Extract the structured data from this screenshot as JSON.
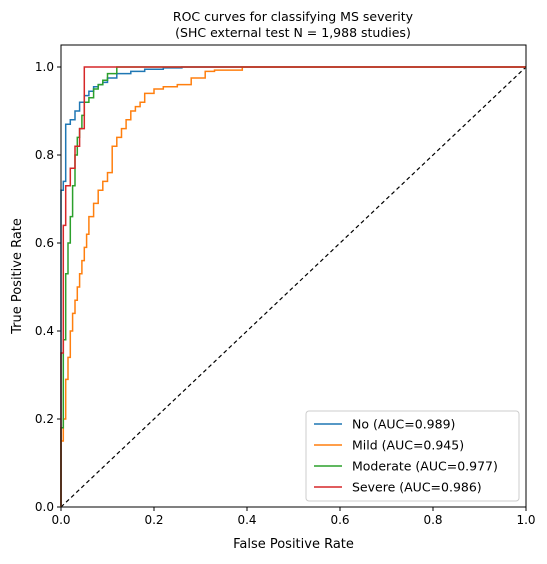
{
  "chart_data": {
    "type": "line",
    "title": "ROC curves for classifying MS severity",
    "subtitle": "(SHC external test N = 1,988 studies)",
    "xlabel": "False Positive Rate",
    "ylabel": "True Positive Rate",
    "xlim": [
      0,
      1.0
    ],
    "ylim": [
      0,
      1.05
    ],
    "xticks": [
      "0.0",
      "0.2",
      "0.4",
      "0.6",
      "0.8",
      "1.0"
    ],
    "yticks": [
      "0.0",
      "0.2",
      "0.4",
      "0.6",
      "0.8",
      "1.0"
    ],
    "grid": false,
    "legend_position": "lower-right",
    "reference_line": {
      "x": [
        0,
        1
      ],
      "y": [
        0,
        1
      ],
      "style": "dashed",
      "color": "#000000"
    },
    "series": [
      {
        "name": "No (AUC=0.989)",
        "color": "#1f77b4",
        "x": [
          0,
          0,
          0.005,
          0.005,
          0.01,
          0.01,
          0.02,
          0.02,
          0.03,
          0.03,
          0.04,
          0.04,
          0.05,
          0.05,
          0.06,
          0.06,
          0.07,
          0.07,
          0.08,
          0.08,
          0.09,
          0.09,
          0.1,
          0.1,
          0.12,
          0.12,
          0.15,
          0.15,
          0.18,
          0.18,
          0.22,
          0.22,
          0.26,
          0.26,
          1.0
        ],
        "y": [
          0,
          0.72,
          0.72,
          0.74,
          0.74,
          0.87,
          0.87,
          0.88,
          0.88,
          0.9,
          0.9,
          0.92,
          0.92,
          0.935,
          0.935,
          0.945,
          0.945,
          0.955,
          0.955,
          0.96,
          0.96,
          0.965,
          0.965,
          0.975,
          0.975,
          0.985,
          0.985,
          0.99,
          0.99,
          0.995,
          0.995,
          0.998,
          0.998,
          1.0,
          1.0
        ]
      },
      {
        "name": "Mild (AUC=0.945)",
        "color": "#ff7f0e",
        "x": [
          0,
          0,
          0.005,
          0.005,
          0.01,
          0.01,
          0.015,
          0.015,
          0.02,
          0.02,
          0.025,
          0.025,
          0.03,
          0.03,
          0.035,
          0.035,
          0.04,
          0.04,
          0.045,
          0.045,
          0.05,
          0.05,
          0.055,
          0.055,
          0.06,
          0.06,
          0.07,
          0.07,
          0.08,
          0.08,
          0.09,
          0.09,
          0.1,
          0.1,
          0.11,
          0.11,
          0.12,
          0.12,
          0.13,
          0.13,
          0.14,
          0.14,
          0.15,
          0.15,
          0.16,
          0.16,
          0.17,
          0.17,
          0.18,
          0.18,
          0.2,
          0.2,
          0.22,
          0.22,
          0.25,
          0.25,
          0.28,
          0.28,
          0.31,
          0.31,
          0.33,
          0.33,
          0.39,
          0.39,
          1.0
        ],
        "y": [
          0,
          0.15,
          0.15,
          0.2,
          0.2,
          0.29,
          0.29,
          0.34,
          0.34,
          0.4,
          0.4,
          0.44,
          0.44,
          0.47,
          0.47,
          0.5,
          0.5,
          0.53,
          0.53,
          0.56,
          0.56,
          0.59,
          0.59,
          0.62,
          0.62,
          0.66,
          0.66,
          0.69,
          0.69,
          0.72,
          0.72,
          0.74,
          0.74,
          0.76,
          0.76,
          0.82,
          0.82,
          0.84,
          0.84,
          0.86,
          0.86,
          0.88,
          0.88,
          0.9,
          0.9,
          0.91,
          0.91,
          0.92,
          0.92,
          0.94,
          0.94,
          0.95,
          0.95,
          0.955,
          0.955,
          0.96,
          0.96,
          0.975,
          0.975,
          0.99,
          0.99,
          0.993,
          0.993,
          1.0,
          1.0
        ]
      },
      {
        "name": "Moderate (AUC=0.977)",
        "color": "#2ca02c",
        "x": [
          0,
          0,
          0.005,
          0.005,
          0.01,
          0.01,
          0.015,
          0.015,
          0.02,
          0.02,
          0.025,
          0.025,
          0.03,
          0.03,
          0.035,
          0.035,
          0.04,
          0.04,
          0.045,
          0.045,
          0.05,
          0.05,
          0.06,
          0.06,
          0.07,
          0.07,
          0.08,
          0.08,
          0.09,
          0.09,
          0.1,
          0.1,
          0.12,
          0.12,
          1.0
        ],
        "y": [
          0,
          0.18,
          0.18,
          0.38,
          0.38,
          0.53,
          0.53,
          0.6,
          0.6,
          0.66,
          0.66,
          0.73,
          0.73,
          0.8,
          0.8,
          0.84,
          0.84,
          0.86,
          0.86,
          0.89,
          0.89,
          0.92,
          0.92,
          0.93,
          0.93,
          0.95,
          0.95,
          0.96,
          0.96,
          0.97,
          0.97,
          0.985,
          0.985,
          1.0,
          1.0
        ]
      },
      {
        "name": "Severe (AUC=0.986)",
        "color": "#d62728",
        "x": [
          0,
          0,
          0.005,
          0.005,
          0.01,
          0.01,
          0.02,
          0.02,
          0.03,
          0.03,
          0.04,
          0.04,
          0.05,
          0.05,
          1.0
        ],
        "y": [
          0,
          0.35,
          0.35,
          0.64,
          0.64,
          0.73,
          0.73,
          0.77,
          0.77,
          0.82,
          0.82,
          0.86,
          0.86,
          1.0,
          1.0
        ]
      }
    ]
  }
}
